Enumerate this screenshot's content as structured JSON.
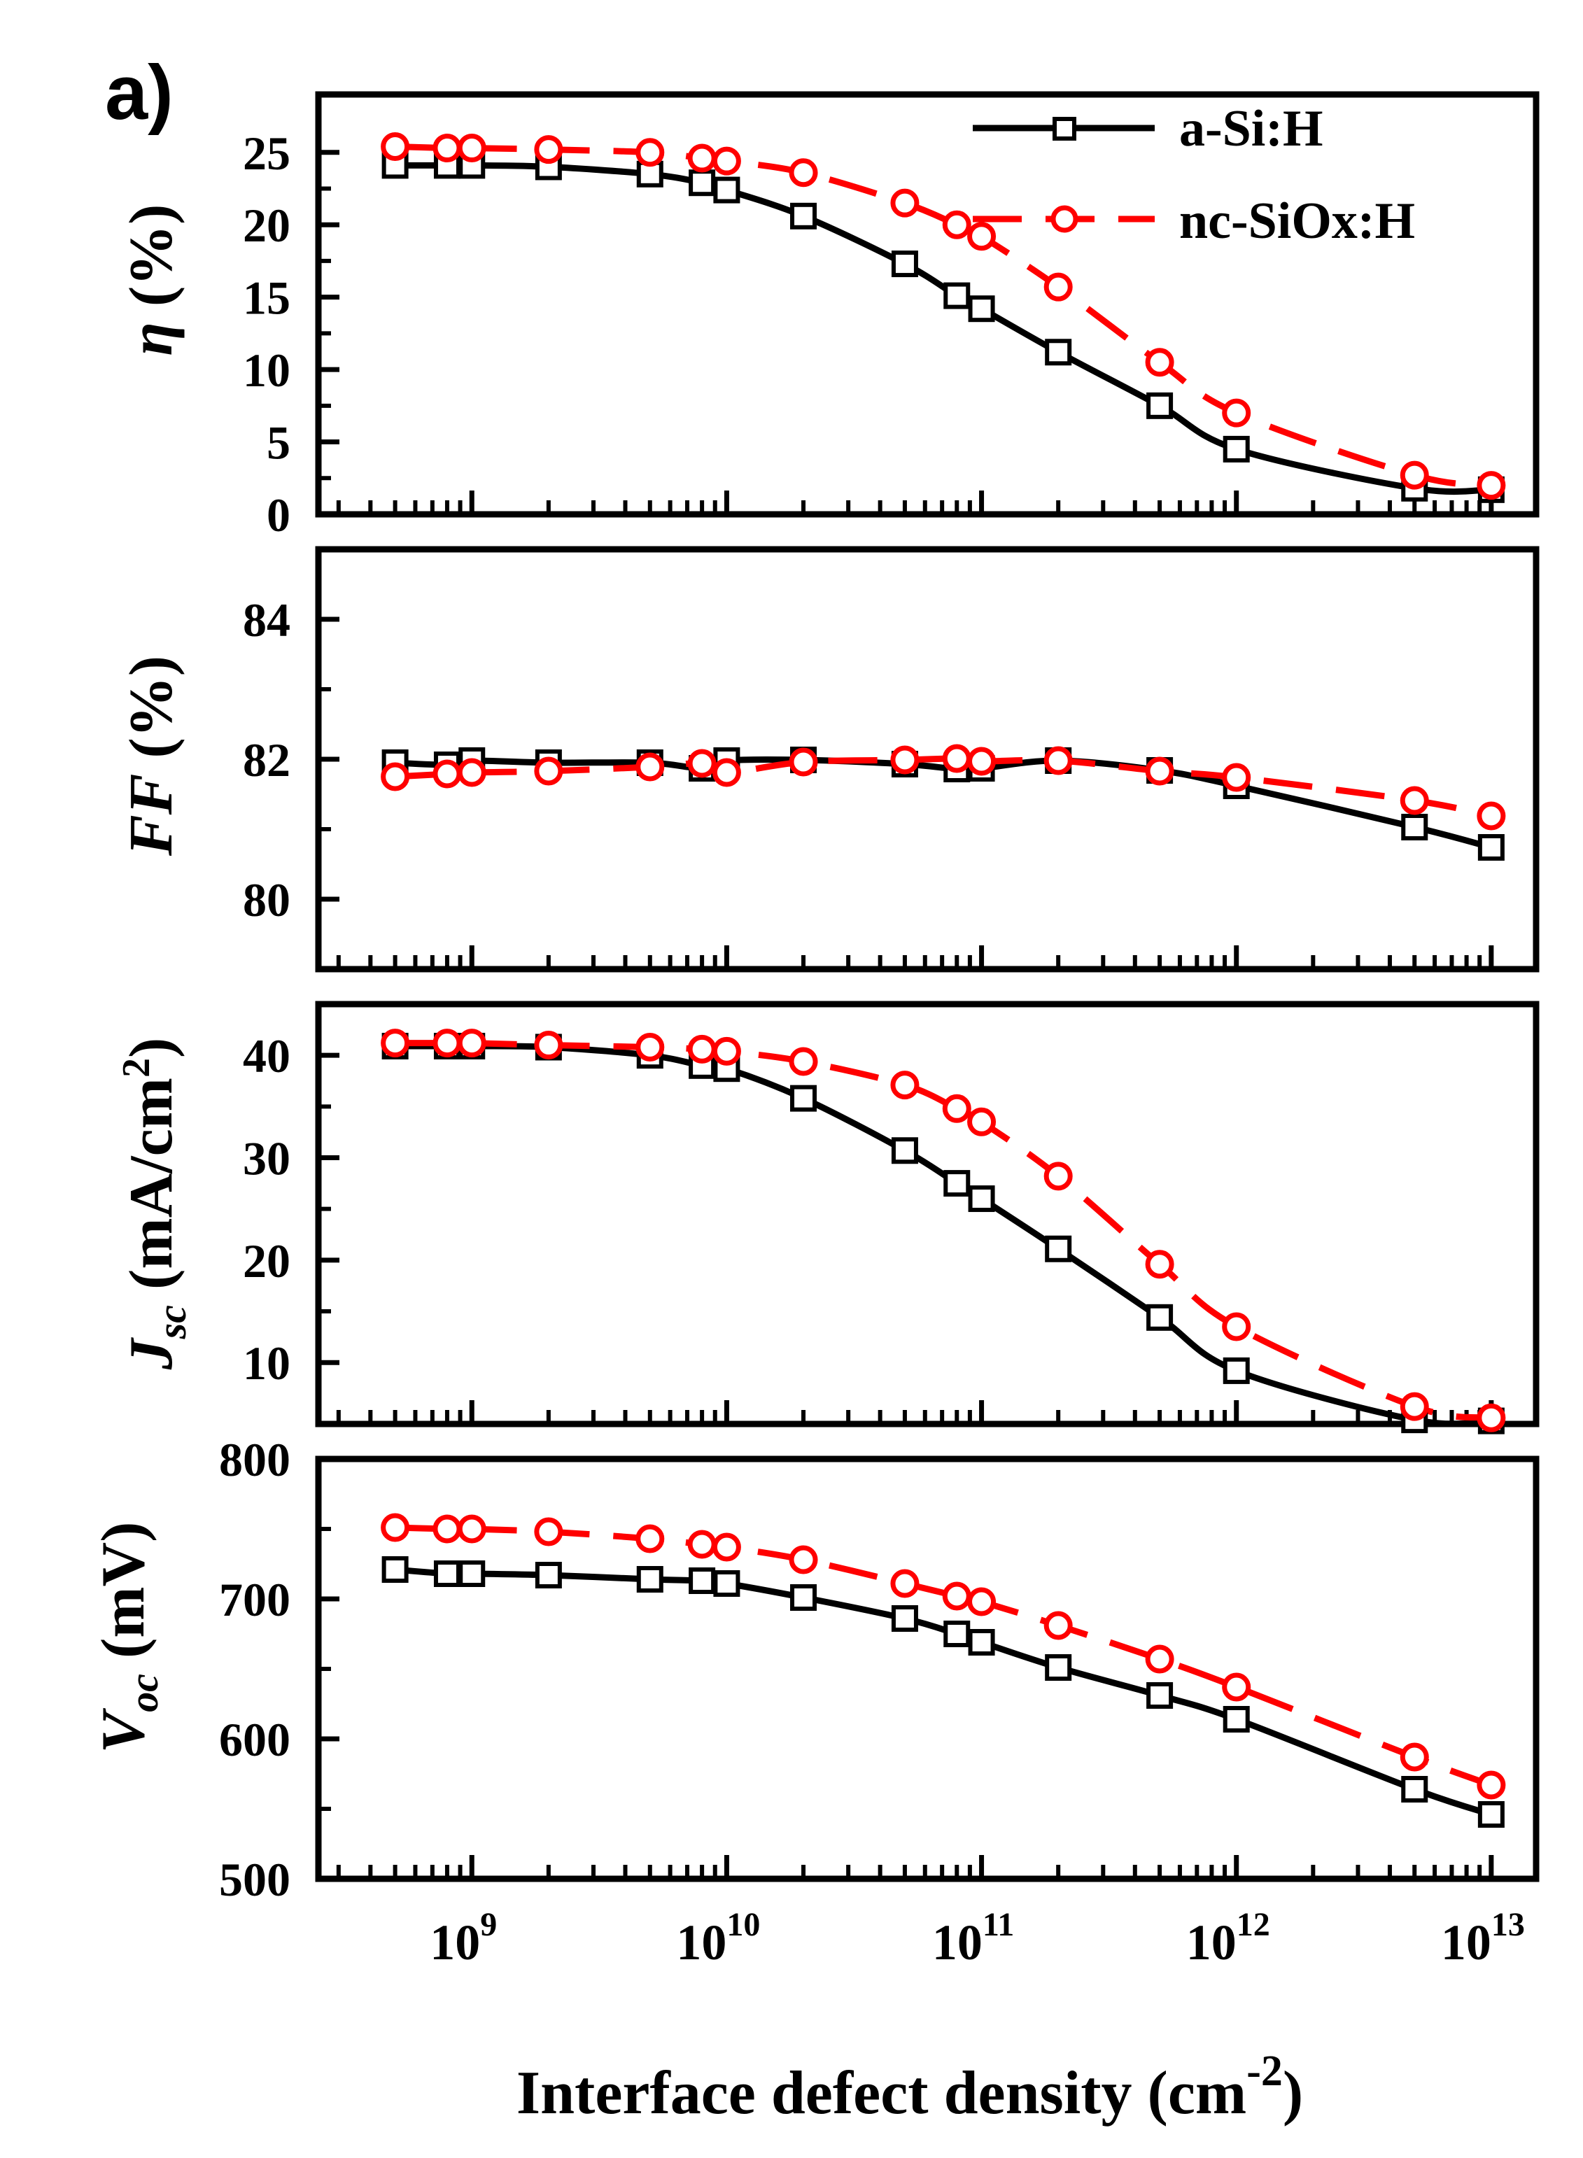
{
  "figure": {
    "panel_tag": "a)",
    "xlabel_main": "Interface defect density (cm",
    "xlabel_exp": "-2",
    "xlabel_close": ")",
    "legend": {
      "series_a": "a-Si:H",
      "series_b": "nc-SiOx:H"
    }
  },
  "chart_data": [
    {
      "type": "line",
      "panel": "eta",
      "ylabel_parts": [
        "η",
        " (%)"
      ],
      "ylim": [
        0,
        29
      ],
      "yticks": [
        0,
        5,
        10,
        15,
        20,
        25
      ],
      "x_scale": "log",
      "xlim": [
        250000000.0,
        15000000000000.0
      ],
      "xticks": [
        1000000000.0,
        10000000000.0,
        100000000000.0,
        1000000000000.0,
        10000000000000.0
      ],
      "x": [
        500000000.0,
        800000000.0,
        1000000000.0,
        2000000000.0,
        5000000000.0,
        8000000000.0,
        10000000000.0,
        20000000000.0,
        50000000000.0,
        80000000000.0,
        100000000000.0,
        200000000000.0,
        500000000000.0,
        1000000000000.0,
        5000000000000.0,
        10000000000000.0
      ],
      "series": [
        {
          "name": "a-Si:H",
          "values": [
            24.1,
            24.1,
            24.1,
            24.0,
            23.5,
            22.9,
            22.4,
            20.6,
            17.3,
            15.1,
            14.2,
            11.2,
            7.5,
            4.5,
            1.8,
            1.7
          ]
        },
        {
          "name": "nc-SiOx:H",
          "values": [
            25.4,
            25.3,
            25.3,
            25.2,
            25.0,
            24.6,
            24.4,
            23.6,
            21.5,
            20.0,
            19.2,
            15.7,
            10.5,
            7.0,
            2.7,
            2.0
          ]
        }
      ]
    },
    {
      "type": "line",
      "panel": "ff",
      "ylabel_parts": [
        "FF",
        " (%)"
      ],
      "ylim": [
        79.0,
        85.0
      ],
      "yticks": [
        80,
        82,
        84
      ],
      "x_scale": "log",
      "xlim": [
        250000000.0,
        15000000000000.0
      ],
      "xticks": [
        1000000000.0,
        10000000000.0,
        100000000000.0,
        1000000000000.0,
        10000000000000.0
      ],
      "x": [
        500000000.0,
        800000000.0,
        1000000000.0,
        2000000000.0,
        5000000000.0,
        8000000000.0,
        10000000000.0,
        20000000000.0,
        50000000000.0,
        80000000000.0,
        100000000000.0,
        200000000000.0,
        500000000000.0,
        1000000000000.0,
        5000000000000.0,
        10000000000000.0
      ],
      "series": [
        {
          "name": "a-Si:H",
          "values": [
            81.95,
            81.92,
            81.98,
            81.95,
            81.95,
            81.87,
            81.98,
            81.99,
            81.93,
            81.86,
            81.87,
            81.98,
            81.84,
            81.62,
            81.03,
            80.74
          ]
        },
        {
          "name": "nc-SiOx:H",
          "values": [
            81.75,
            81.79,
            81.81,
            81.83,
            81.89,
            81.94,
            81.81,
            81.96,
            81.99,
            82.01,
            81.97,
            81.98,
            81.83,
            81.74,
            81.41,
            81.19
          ]
        }
      ]
    },
    {
      "type": "line",
      "panel": "jsc",
      "ylabel_parts": [
        "J",
        "sc",
        " (mA/cm",
        "2",
        ")"
      ],
      "ylim": [
        4,
        45
      ],
      "yticks": [
        10,
        20,
        30,
        40
      ],
      "x_scale": "log",
      "xlim": [
        250000000.0,
        15000000000000.0
      ],
      "xticks": [
        1000000000.0,
        10000000000.0,
        100000000000.0,
        1000000000000.0,
        10000000000000.0
      ],
      "x": [
        500000000.0,
        800000000.0,
        1000000000.0,
        2000000000.0,
        5000000000.0,
        8000000000.0,
        10000000000.0,
        20000000000.0,
        50000000000.0,
        80000000000.0,
        100000000000.0,
        200000000000.0,
        500000000000.0,
        1000000000000.0,
        5000000000000.0,
        10000000000000.0
      ],
      "series": [
        {
          "name": "a-Si:H",
          "values": [
            40.9,
            40.9,
            40.9,
            40.8,
            40.0,
            39.0,
            38.7,
            35.8,
            30.7,
            27.5,
            26.0,
            21.1,
            14.4,
            9.2,
            4.4,
            4.3
          ]
        },
        {
          "name": "nc-SiOx:H",
          "values": [
            41.2,
            41.2,
            41.2,
            41.0,
            40.8,
            40.6,
            40.4,
            39.4,
            37.1,
            34.8,
            33.5,
            28.2,
            19.6,
            13.5,
            5.7,
            4.6
          ]
        }
      ]
    },
    {
      "type": "line",
      "panel": "voc",
      "ylabel_parts": [
        "V",
        "oc",
        " (mV)"
      ],
      "ylim": [
        500,
        800
      ],
      "yticks": [
        500,
        600,
        700,
        800
      ],
      "x_scale": "log",
      "xlim": [
        250000000.0,
        15000000000000.0
      ],
      "xticks": [
        1000000000.0,
        10000000000.0,
        100000000000.0,
        1000000000000.0,
        10000000000000.0
      ],
      "xtick_labels": [
        {
          "base": "10",
          "exp": "9"
        },
        {
          "base": "10",
          "exp": "10"
        },
        {
          "base": "10",
          "exp": "11"
        },
        {
          "base": "10",
          "exp": "12"
        },
        {
          "base": "10",
          "exp": "13"
        }
      ],
      "x": [
        500000000.0,
        800000000.0,
        1000000000.0,
        2000000000.0,
        5000000000.0,
        8000000000.0,
        10000000000.0,
        20000000000.0,
        50000000000.0,
        80000000000.0,
        100000000000.0,
        200000000000.0,
        500000000000.0,
        1000000000000.0,
        5000000000000.0,
        10000000000000.0
      ],
      "series": [
        {
          "name": "a-Si:H",
          "values": [
            721,
            718,
            718,
            717,
            714,
            713,
            711,
            701,
            686,
            675,
            669,
            651,
            631,
            614,
            564,
            546
          ]
        },
        {
          "name": "nc-SiOx:H",
          "values": [
            751,
            750,
            750,
            748,
            743,
            739,
            737,
            728,
            711,
            702,
            698,
            681,
            657,
            637,
            587,
            567
          ]
        }
      ]
    }
  ]
}
